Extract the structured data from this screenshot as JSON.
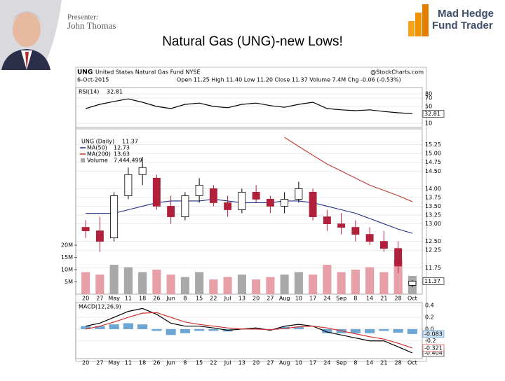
{
  "slide": {
    "presenter_label": "Presenter:",
    "presenter_name": "John Thomas",
    "logo_line1": "Mad Hedge",
    "logo_line2": "Fund Trader",
    "title": "Natural Gas (UNG)-new Lows!"
  },
  "chart_data": [
    {
      "type": "line",
      "title": "RSI(14)",
      "categories": [
        "20",
        "27",
        "May",
        "11",
        "18",
        "26",
        "Jun",
        "8",
        "15",
        "22",
        "Jul",
        "13",
        "20",
        "27",
        "Aug",
        "10",
        "17",
        "24",
        "Sep",
        "8",
        "14",
        "21",
        "28",
        "Oct"
      ],
      "series": [
        {
          "color": "#000000",
          "show_last": true,
          "values": [
            45,
            55,
            62,
            68,
            60,
            50,
            45,
            55,
            58,
            50,
            47,
            55,
            58,
            52,
            48,
            55,
            60,
            45,
            42,
            40,
            42,
            38,
            35,
            32.81
          ]
        }
      ],
      "ylim": [
        0,
        95
      ],
      "yticks": [
        80,
        70,
        50,
        10
      ],
      "grid": true
    },
    {
      "type": "candlestick",
      "symbol": "UNG",
      "name": "United States Natural Gas Fund NYSE",
      "source": "@StockCharts.com",
      "date": "6-Oct-2015",
      "quote": "Open 11.25 High 11.40 Low 11.20 Close 11.37 Volume 7.4M Chg -0.06 (-0.53%)",
      "legend_label": "UNG (Daily)",
      "categories": [
        "20",
        "27",
        "May",
        "11",
        "18",
        "26",
        "Jun",
        "8",
        "15",
        "22",
        "Jul",
        "13",
        "20",
        "27",
        "Aug",
        "10",
        "17",
        "24",
        "Sep",
        "8",
        "14",
        "21",
        "28",
        "Oct"
      ],
      "open": [
        12.9,
        12.8,
        12.6,
        13.8,
        14.4,
        14.3,
        13.5,
        13.2,
        13.8,
        14.0,
        13.6,
        13.4,
        13.9,
        13.7,
        13.5,
        13.7,
        13.9,
        13.2,
        13.0,
        12.9,
        12.7,
        12.5,
        12.3,
        11.25
      ],
      "high": [
        13.1,
        13.2,
        13.9,
        14.6,
        14.9,
        14.4,
        13.8,
        13.9,
        14.3,
        14.1,
        13.8,
        14.0,
        14.1,
        13.8,
        13.9,
        14.2,
        14.0,
        13.4,
        13.3,
        13.1,
        12.9,
        12.8,
        12.5,
        11.4
      ],
      "low": [
        12.6,
        12.2,
        12.5,
        13.7,
        14.1,
        13.4,
        13.0,
        13.1,
        13.6,
        13.5,
        13.2,
        13.3,
        13.6,
        13.3,
        13.3,
        13.6,
        13.1,
        12.8,
        12.7,
        12.5,
        12.4,
        12.2,
        11.6,
        11.2
      ],
      "close": [
        12.8,
        12.5,
        13.8,
        14.4,
        14.6,
        13.5,
        13.2,
        13.8,
        14.1,
        13.6,
        13.4,
        13.9,
        13.7,
        13.5,
        13.7,
        14.0,
        13.2,
        13.0,
        12.9,
        12.7,
        12.5,
        12.3,
        11.8,
        11.37
      ],
      "series": [
        {
          "name": "MA(50)",
          "color": "#1f2d8a",
          "values": [
            13.3,
            13.3,
            13.3,
            13.4,
            13.5,
            13.6,
            13.65,
            13.65,
            13.65,
            13.7,
            13.65,
            13.6,
            13.6,
            13.6,
            13.65,
            13.65,
            13.6,
            13.5,
            13.4,
            13.3,
            13.15,
            13.0,
            12.85,
            12.73
          ]
        },
        {
          "name": "MA(200)",
          "color": "#c0392b",
          "values": [
            null,
            null,
            null,
            null,
            null,
            null,
            null,
            null,
            null,
            null,
            null,
            null,
            null,
            null,
            15.46,
            15.2,
            14.95,
            14.7,
            14.5,
            14.3,
            14.1,
            13.95,
            13.8,
            13.63
          ]
        }
      ],
      "volume": {
        "name": "Volume",
        "color": "#a9a9a9",
        "last_label": "7,444,499",
        "values": [
          9000000,
          8000000,
          12000000,
          11000000,
          9000000,
          10000000,
          8000000,
          7000000,
          9000000,
          6000000,
          7000000,
          8000000,
          6000000,
          7000000,
          8000000,
          9000000,
          8000000,
          12000000,
          9000000,
          10000000,
          11000000,
          9000000,
          14000000,
          7444499
        ],
        "ylim": [
          0,
          20000000
        ],
        "yticks": [
          {
            "value": 20000000,
            "label": "20M"
          },
          {
            "value": 15000000,
            "label": "15M"
          },
          {
            "value": 10000000,
            "label": "10M"
          },
          {
            "value": 5000000,
            "label": "5M"
          }
        ]
      },
      "ylim": [
        11.0,
        15.7
      ],
      "yticks": [
        15.25,
        {
          "value": 15,
          "label": "15.00"
        },
        14.75,
        {
          "value": 14.5,
          "label": "14.50"
        },
        {
          "value": 14,
          "label": "14.00"
        },
        13.75,
        {
          "value": 13.5,
          "label": "13.50"
        },
        13.25,
        {
          "value": 13,
          "label": "13.00"
        },
        {
          "value": 12.5,
          "label": "12.50"
        },
        12.25,
        11.75
      ],
      "grid": true
    },
    {
      "type": "line",
      "title": "MACD(12,26,9)",
      "categories": [
        "20",
        "27",
        "May",
        "11",
        "18",
        "26",
        "Jun",
        "8",
        "15",
        "22",
        "Jul",
        "13",
        "20",
        "27",
        "Aug",
        "10",
        "17",
        "24",
        "Sep",
        "8",
        "14",
        "21",
        "28",
        "Oct"
      ],
      "series": [
        {
          "style": "bar",
          "color": "#4a90c8",
          "show_last": true,
          "values": [
            0.05,
            0.05,
            0.08,
            0.1,
            0.08,
            -0.03,
            -0.1,
            -0.07,
            -0.03,
            -0.03,
            -0.04,
            0,
            0.02,
            -0.01,
            0.04,
            0.04,
            0,
            -0.07,
            -0.07,
            -0.07,
            -0.07,
            -0.03,
            -0.06,
            -0.083
          ]
        },
        {
          "color": "#000000",
          "show_last": true,
          "values": [
            0.05,
            0.1,
            0.2,
            0.3,
            0.35,
            0.25,
            0.1,
            0.05,
            0.05,
            0.02,
            -0.02,
            0,
            0.02,
            -0.02,
            0.05,
            0.08,
            0.05,
            -0.05,
            -0.1,
            -0.15,
            -0.2,
            -0.2,
            -0.3,
            -0.404
          ]
        },
        {
          "color": "#d0302b",
          "show_last": true,
          "values": [
            0,
            0.05,
            0.12,
            0.2,
            0.27,
            0.28,
            0.2,
            0.12,
            0.08,
            0.05,
            0.02,
            0,
            0,
            -0.01,
            0.01,
            0.04,
            0.05,
            0.02,
            -0.03,
            -0.08,
            -0.13,
            -0.17,
            -0.24,
            -0.321
          ]
        }
      ],
      "ylim": [
        -0.5,
        0.45
      ],
      "yticks": [
        0.4,
        0.2,
        {
          "value": 0,
          "label": "0.0"
        },
        -0.2
      ],
      "grid": true
    }
  ]
}
